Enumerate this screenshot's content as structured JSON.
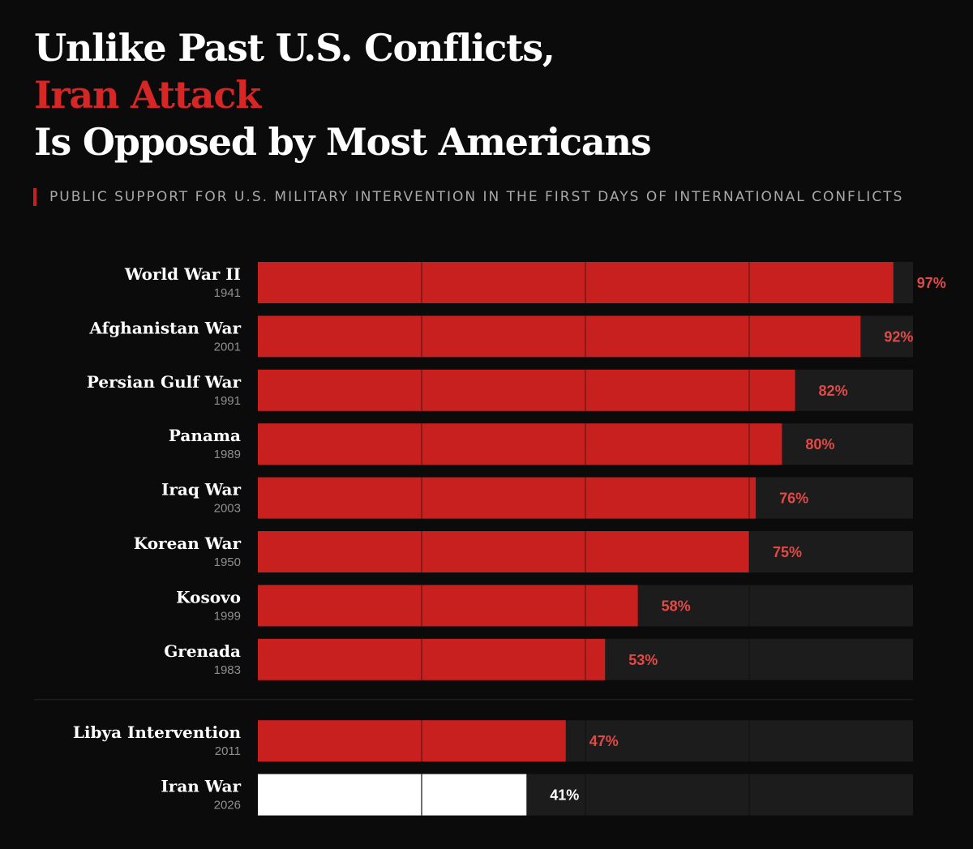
{
  "title": {
    "line1": "Unlike Past U.S. Conflicts,",
    "line2": "Iran Attack",
    "line3": "Is Opposed by Most Americans"
  },
  "subtitle": "PUBLIC SUPPORT FOR U.S. MILITARY INTERVENTION IN THE FIRST DAYS OF INTERNATIONAL CONFLICTS",
  "colors": {
    "background": "#0b0b0b",
    "bar": "#c8201f",
    "highlight_bar": "#ffffff",
    "track": "#1c1c1c",
    "value_text": "#e04a47",
    "accent_title": "#d62626"
  },
  "chart_data": {
    "type": "bar",
    "orientation": "horizontal",
    "title": "Unlike Past U.S. Conflicts, Iran Attack Is Opposed by Most Americans",
    "xlabel": "",
    "ylabel": "",
    "xlim": [
      0,
      100
    ],
    "grid_x": [
      25,
      50,
      75
    ],
    "unit": "%",
    "categories": [
      "World War II",
      "Afghanistan War",
      "Persian Gulf War",
      "Panama",
      "Iraq War",
      "Korean War",
      "Kosovo",
      "Grenada",
      "Libya Intervention",
      "Iran War"
    ],
    "years": [
      "1941",
      "2001",
      "1991",
      "1989",
      "2003",
      "1950",
      "1999",
      "1983",
      "2011",
      "2026"
    ],
    "values": [
      97,
      92,
      82,
      80,
      76,
      75,
      58,
      53,
      47,
      41
    ],
    "value_labels": [
      "97%",
      "92%",
      "82%",
      "80%",
      "76%",
      "75%",
      "58%",
      "53%",
      "47%",
      "41%"
    ],
    "highlight": "Iran War",
    "separator_after": "Grenada"
  }
}
